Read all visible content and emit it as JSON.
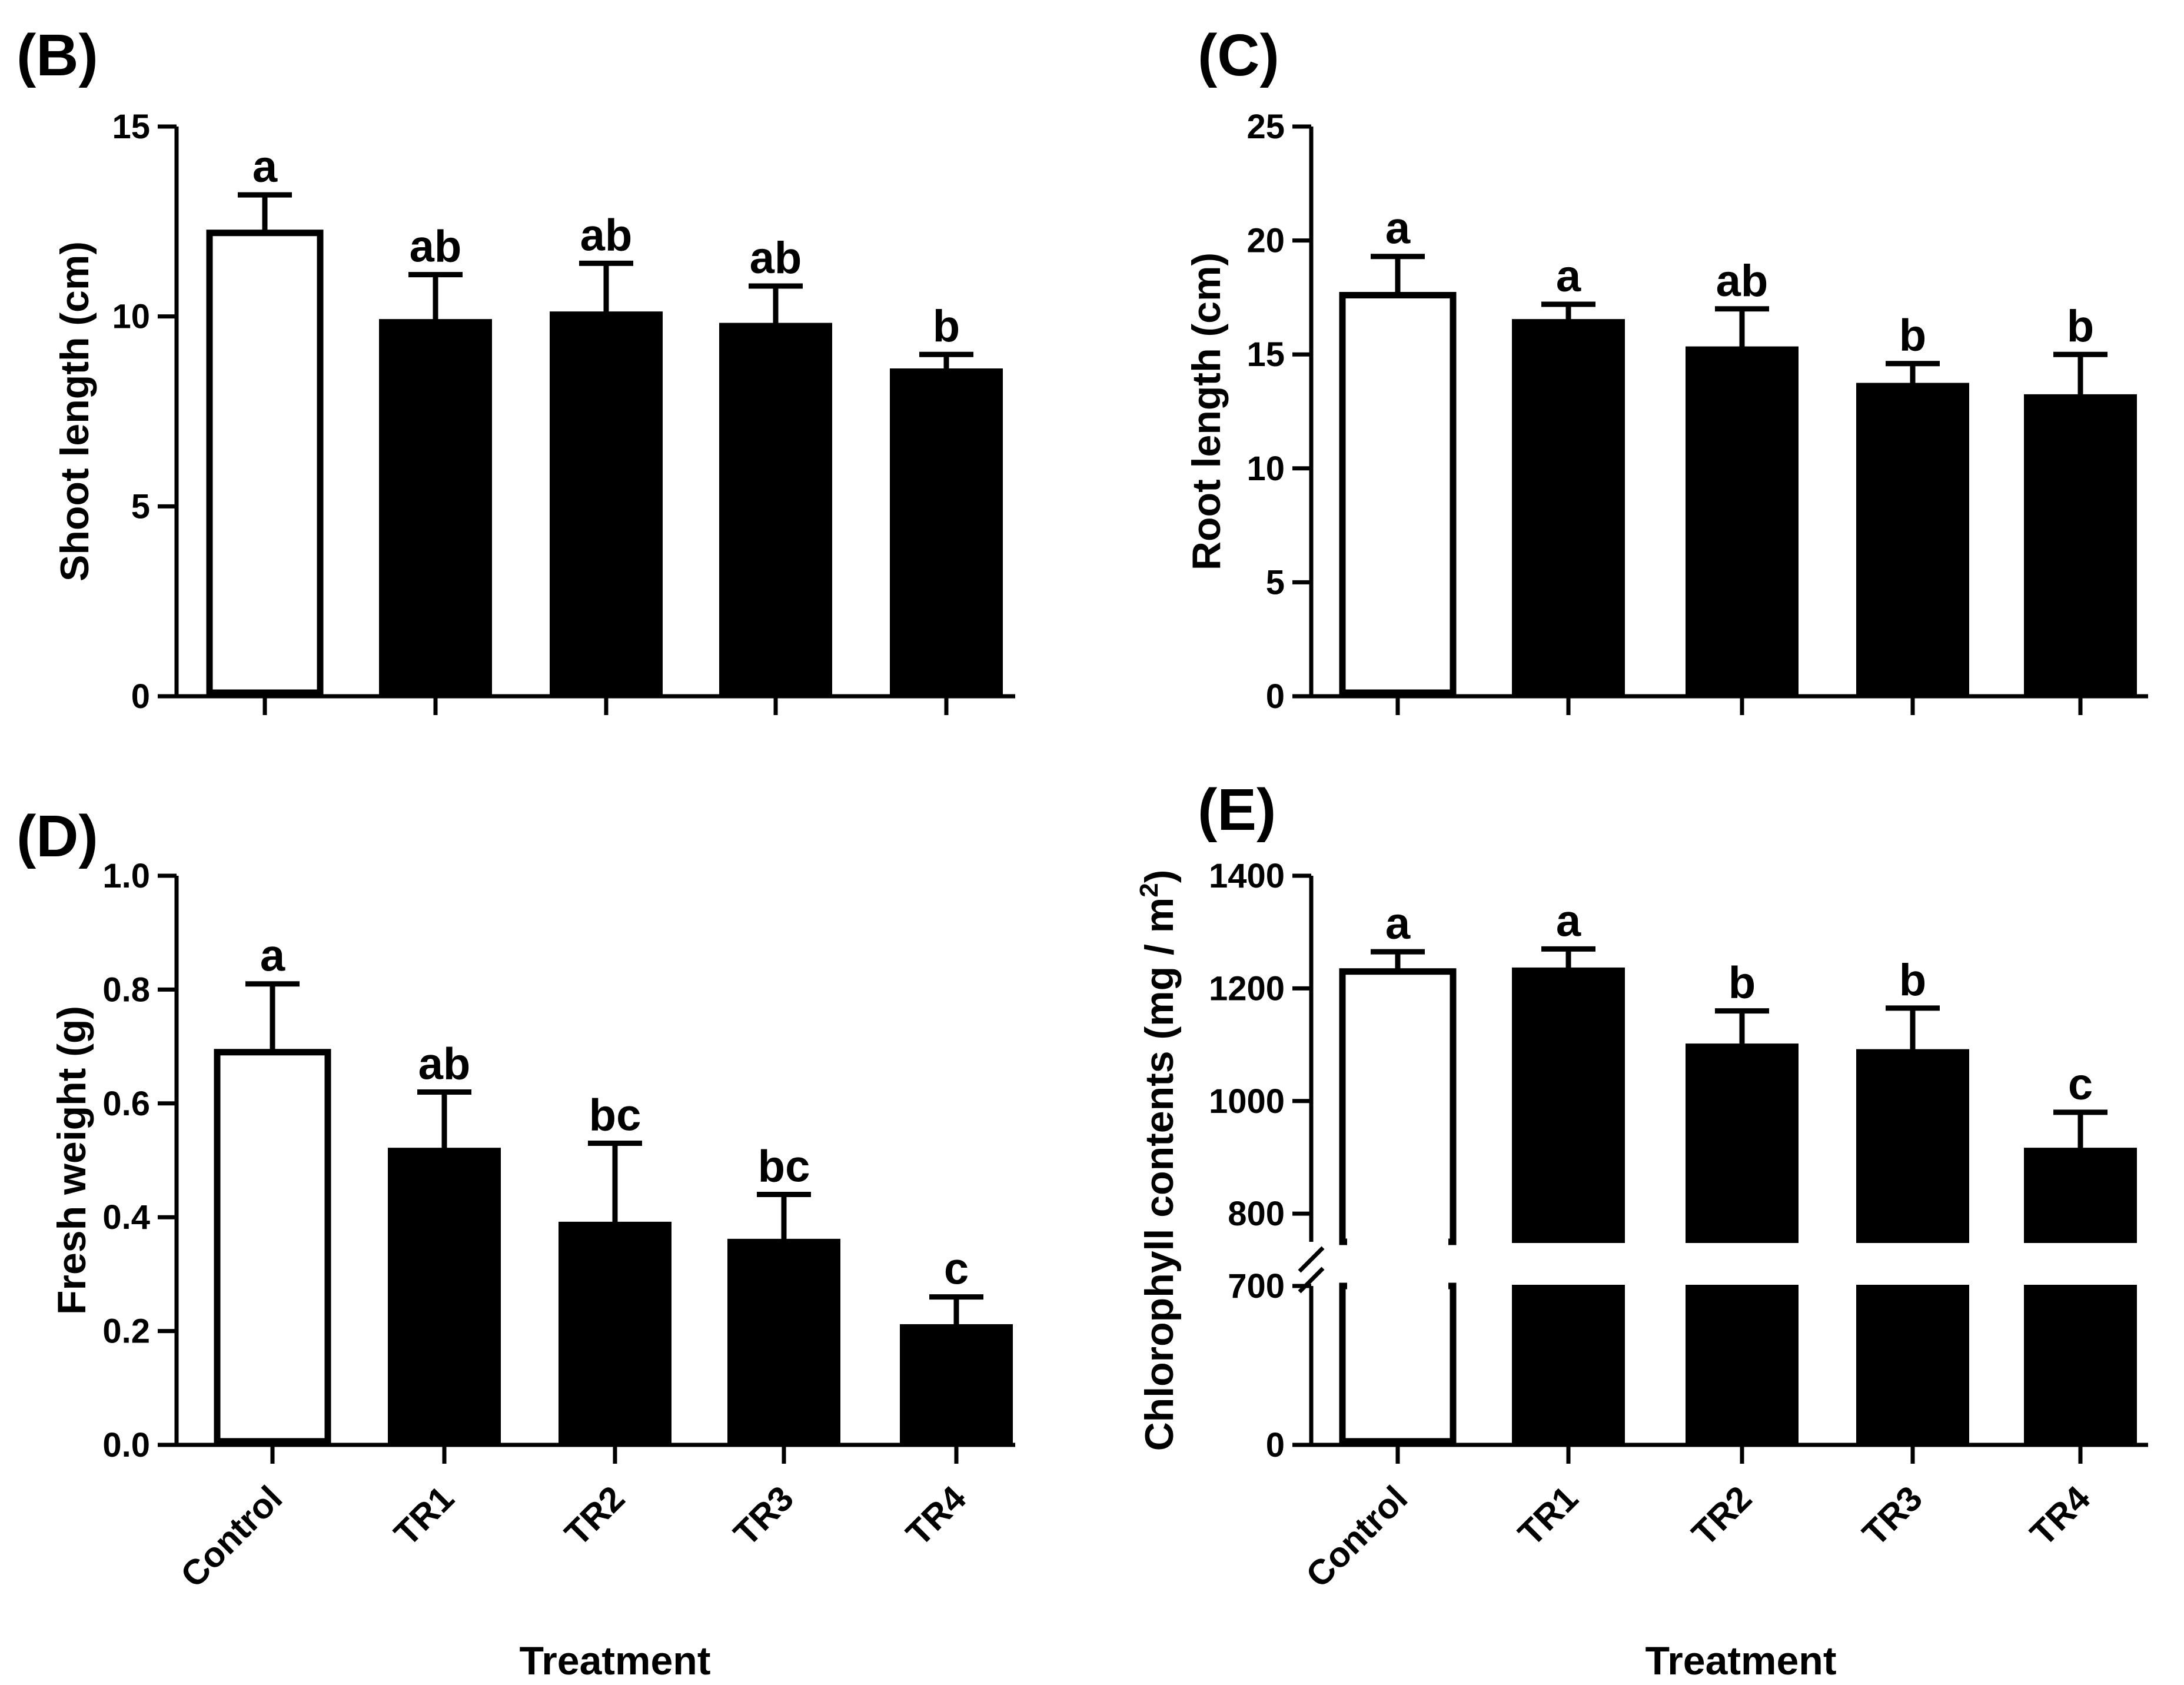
{
  "chart_data": [
    {
      "id": "B",
      "type": "bar",
      "panel_label": "(B)",
      "title": "",
      "xlabel": "",
      "ylabel": "Shoot length (cm)",
      "ylim": [
        0,
        15
      ],
      "yticks": [
        0,
        5,
        10,
        15
      ],
      "ytick_labels": [
        "0",
        "5",
        "10",
        "15"
      ],
      "categories": [
        "Control",
        "TR1",
        "TR2",
        "TR3",
        "TR4"
      ],
      "values": [
        12.2,
        9.9,
        10.1,
        9.8,
        8.6
      ],
      "errors": [
        1.0,
        1.2,
        1.3,
        1.0,
        0.4
      ],
      "significance": [
        "a",
        "ab",
        "ab",
        "ab",
        "b"
      ],
      "show_category_labels": false,
      "legend": "none"
    },
    {
      "id": "C",
      "type": "bar",
      "panel_label": "(C)",
      "title": "",
      "xlabel": "",
      "ylabel": "Root length (cm)",
      "ylim": [
        0,
        25
      ],
      "yticks": [
        0,
        5,
        10,
        15,
        20,
        25
      ],
      "ytick_labels": [
        "0",
        "5",
        "10",
        "15",
        "20",
        "25"
      ],
      "categories": [
        "Control",
        "TR1",
        "TR2",
        "TR3",
        "TR4"
      ],
      "values": [
        17.6,
        16.5,
        15.3,
        13.7,
        13.2
      ],
      "errors": [
        1.7,
        0.7,
        1.7,
        0.9,
        1.8
      ],
      "significance": [
        "a",
        "a",
        "ab",
        "b",
        "b"
      ],
      "show_category_labels": false,
      "legend": "none"
    },
    {
      "id": "D",
      "type": "bar",
      "panel_label": "(D)",
      "title": "",
      "xlabel": "Treatment",
      "ylabel": "Fresh weight (g)",
      "ylim": [
        0,
        1.0
      ],
      "yticks": [
        0,
        0.2,
        0.4,
        0.6,
        0.8,
        1.0
      ],
      "ytick_labels": [
        "0.0",
        "0.2",
        "0.4",
        "0.6",
        "0.8",
        "1.0"
      ],
      "categories": [
        "Control",
        "TR1",
        "TR2",
        "TR3",
        "TR4"
      ],
      "values": [
        0.69,
        0.52,
        0.39,
        0.36,
        0.21
      ],
      "errors": [
        0.12,
        0.1,
        0.14,
        0.08,
        0.05
      ],
      "significance": [
        "a",
        "ab",
        "bc",
        "bc",
        "c"
      ],
      "show_category_labels": true,
      "legend": "none"
    },
    {
      "id": "E",
      "type": "bar",
      "panel_label": "(E)",
      "title": "",
      "xlabel": "Treatment",
      "ylabel": "Chlorophyll contents (mg / m",
      "ylabel_superscript": "2",
      "ylabel_suffix": ")",
      "axis_break": {
        "lower_range": [
          0,
          700
        ],
        "upper_range": [
          750,
          1400
        ]
      },
      "ylim": [
        0,
        1400
      ],
      "yticks": [
        0,
        700,
        800,
        1000,
        1200,
        1400
      ],
      "ytick_labels": [
        "0",
        "700",
        "800",
        "1000",
        "1200",
        "1400"
      ],
      "categories": [
        "Control",
        "TR1",
        "TR2",
        "TR3",
        "TR4"
      ],
      "values": [
        1230,
        1235,
        1100,
        1090,
        915
      ],
      "errors": [
        35,
        35,
        60,
        75,
        65
      ],
      "significance": [
        "a",
        "a",
        "b",
        "b",
        "c"
      ],
      "show_category_labels": true,
      "legend": "none"
    }
  ]
}
